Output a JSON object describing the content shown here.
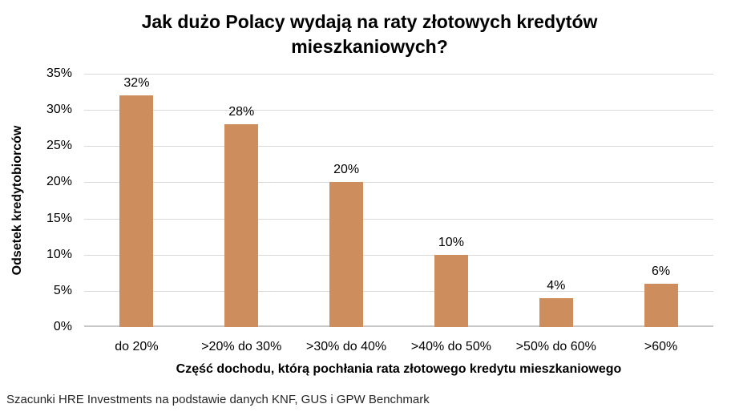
{
  "colors": {
    "bar": "#CE8D5C",
    "gridline": "#D9D9D9",
    "axis_baseline": "#C8C6C6",
    "text": "#000000",
    "footer_text": "#262626"
  },
  "footer": "Szacunki HRE Investments na podstawie danych KNF, GUS i GPW Benchmark",
  "chart_data": {
    "type": "bar",
    "title": "Jak dużo Polacy wydają na raty złotowych kredytów mieszkaniowych?",
    "categories": [
      "do 20%",
      ">20% do 30%",
      ">30% do 40%",
      ">40% do 50%",
      ">50% do 60%",
      ">60%"
    ],
    "values": [
      32,
      28,
      20,
      10,
      4,
      6
    ],
    "value_labels": [
      "32%",
      "28%",
      "20%",
      "10%",
      "4%",
      "6%"
    ],
    "xlabel": "Część dochodu, którą pochłania rata złotowego kredytu mieszkaniowego",
    "ylabel": "Odsetek kredytobiorców",
    "ylim": [
      0,
      35
    ],
    "ytick_step": 5,
    "ytick_labels": [
      "0%",
      "5%",
      "10%",
      "15%",
      "20%",
      "25%",
      "30%",
      "35%"
    ],
    "grid": true,
    "legend": false
  }
}
